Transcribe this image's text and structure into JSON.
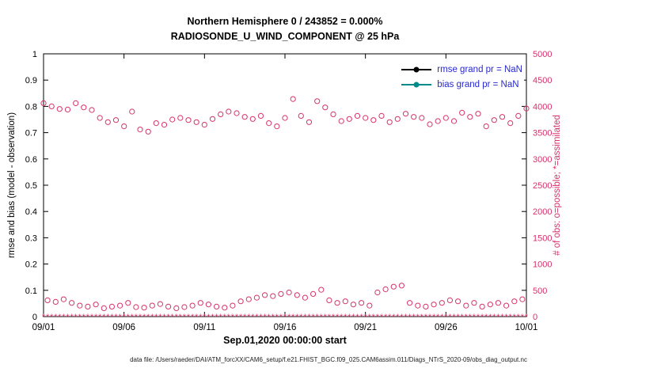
{
  "chart_data": {
    "type": "scatter",
    "title_line1": "Northern Hemisphere 0 / 243852 = 0.000%",
    "title_line2": "RADIOSONDE_U_WIND_COMPONENT @ 25 hPa",
    "xlabel": "Sep.01,2020 00:00:00 start",
    "ylabel_left": "rmse and bias (model - observation)",
    "ylabel_right": "# of obs: o=possible; *=assimilated",
    "grid": false,
    "axis_color": "#000000",
    "obs_color": "#d6336c",
    "x_axis": {
      "range_days": [
        0,
        30
      ],
      "tick_days": [
        0,
        5,
        10,
        15,
        20,
        25,
        30
      ],
      "tick_labels": [
        "09/01",
        "09/06",
        "09/11",
        "09/16",
        "09/21",
        "09/26",
        "10/01"
      ]
    },
    "y_axis_left": {
      "min": 0,
      "max": 1,
      "step": 0.1,
      "tick_labels": [
        "0",
        "0.1",
        "0.2",
        "0.3",
        "0.4",
        "0.5",
        "0.6",
        "0.7",
        "0.8",
        "0.9",
        "1"
      ],
      "color": "#000000"
    },
    "y_axis_right": {
      "min": 0,
      "max": 5000,
      "step": 500,
      "tick_labels": [
        "0",
        "500",
        "1000",
        "1500",
        "2000",
        "2500",
        "3000",
        "3500",
        "4000",
        "4500",
        "5000"
      ],
      "color": "#d6336c"
    },
    "legend": [
      {
        "label": "rmse grand pr = NaN",
        "color": "#000000",
        "value": "NaN"
      },
      {
        "label": "bias grand pr = NaN",
        "color": "#008b8b",
        "value": "NaN"
      }
    ],
    "series": [
      {
        "name": "possible-obs-major-times",
        "marker": "circle",
        "axis": "right",
        "x_start": 0,
        "x_step": 0.5,
        "values": [
          4060,
          4000,
          3950,
          3940,
          4060,
          3980,
          3930,
          3780,
          3700,
          3740,
          3620,
          3900,
          3560,
          3520,
          3680,
          3650,
          3750,
          3780,
          3740,
          3700,
          3650,
          3760,
          3850,
          3900,
          3870,
          3800,
          3760,
          3820,
          3680,
          3620,
          3780,
          4140,
          3820,
          3700,
          4100,
          3980,
          3850,
          3720,
          3760,
          3820,
          3780,
          3740,
          3820,
          3700,
          3760,
          3860,
          3800,
          3780,
          3660,
          3720,
          3780,
          3720,
          3880,
          3800,
          3860,
          3620,
          3740,
          3800,
          3680,
          3820,
          3960
        ]
      },
      {
        "name": "possible-obs-minor-times",
        "marker": "circle",
        "axis": "right",
        "x_start": 0.25,
        "x_step": 0.5,
        "values": [
          310,
          280,
          330,
          260,
          210,
          190,
          230,
          160,
          190,
          210,
          260,
          180,
          170,
          210,
          240,
          190,
          160,
          180,
          210,
          260,
          230,
          190,
          170,
          210,
          290,
          330,
          360,
          410,
          390,
          430,
          460,
          410,
          360,
          430,
          510,
          310,
          260,
          290,
          230,
          260,
          210,
          460,
          520,
          570,
          590,
          260,
          210,
          190,
          230,
          260,
          310,
          290,
          210,
          260,
          190,
          230,
          260,
          210,
          290,
          330
        ]
      },
      {
        "name": "assimilated-obs",
        "marker": "asterisk",
        "axis": "right",
        "x_start": 0,
        "x_step": 0.25,
        "count": 121,
        "constant_value": 0
      }
    ]
  },
  "caption": "data file: /Users/raeder/DAI/ATM_forcXX/CAM6_setup/f.e21.FHIST_BGC.f09_025.CAM6assim.011/Diags_NTrS_2020-09/obs_diag_output.nc"
}
